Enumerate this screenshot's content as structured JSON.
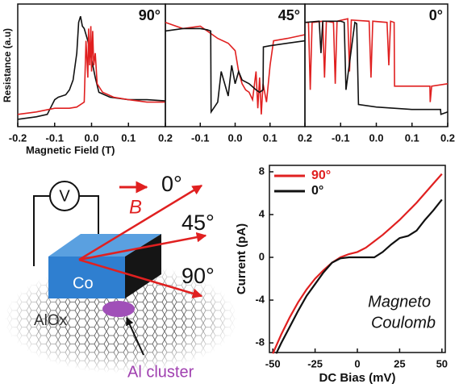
{
  "chart_data": [
    {
      "type": "line",
      "title": "90°",
      "x_label": "Magnetic Field (T)",
      "y_label": "Resistance (a.u)",
      "xlim": [
        -0.2,
        0.2
      ],
      "ylim": [
        0,
        1
      ],
      "xticks": [
        -0.2,
        -0.1,
        {
          "value": 0,
          "label": "0.0"
        },
        0.1,
        0.2
      ],
      "series": [
        {
          "color": "#111111",
          "x": [
            -0.2,
            -0.15,
            -0.12,
            -0.11,
            -0.1,
            -0.09,
            -0.07,
            -0.06,
            -0.05,
            -0.04,
            -0.035,
            -0.03,
            -0.025,
            -0.02,
            -0.01,
            0,
            0.01,
            0.02,
            0.05,
            0.1,
            0.15,
            0.2
          ],
          "values": [
            0.06,
            0.08,
            0.1,
            0.16,
            0.22,
            0.24,
            0.26,
            0.3,
            0.38,
            0.6,
            0.85,
            0.9,
            0.82,
            0.8,
            0.7,
            0.55,
            0.4,
            0.28,
            0.24,
            0.22,
            0.22,
            0.21
          ]
        },
        {
          "color": "#e02020",
          "x": [
            -0.2,
            -0.15,
            -0.1,
            -0.06,
            -0.04,
            -0.02,
            -0.015,
            -0.01,
            -0.008,
            -0.005,
            -0.002,
            0,
            0.003,
            0.006,
            0.01,
            0.015,
            0.03,
            0.06,
            0.1,
            0.15,
            0.2
          ],
          "values": [
            0.1,
            0.12,
            0.15,
            0.15,
            0.16,
            0.2,
            0.7,
            0.4,
            0.8,
            0.5,
            0.82,
            0.45,
            0.78,
            0.5,
            0.6,
            0.35,
            0.28,
            0.24,
            0.22,
            0.2,
            0.2
          ]
        }
      ]
    },
    {
      "type": "line",
      "title": "45°",
      "xlim": [
        -0.2,
        0.2
      ],
      "ylim": [
        0,
        1
      ],
      "xticks": [
        -0.1,
        {
          "value": 0,
          "label": "0.0"
        },
        0.1,
        0.2
      ],
      "series": [
        {
          "color": "#e02020",
          "x": [
            -0.2,
            -0.15,
            -0.1,
            -0.05,
            -0.02,
            0,
            0.01,
            0.02,
            0.03,
            0.04,
            0.05,
            0.06,
            0.065,
            0.07,
            0.075,
            0.08,
            0.09,
            0.1,
            0.11,
            0.15,
            0.2
          ],
          "values": [
            0.85,
            0.8,
            0.82,
            0.72,
            0.68,
            0.62,
            0.45,
            0.35,
            0.3,
            0.28,
            0.22,
            0.45,
            0.15,
            0.4,
            0.1,
            0.35,
            0.2,
            0.5,
            0.7,
            0.72,
            0.75
          ]
        },
        {
          "color": "#111111",
          "x": [
            -0.2,
            -0.15,
            -0.1,
            -0.08,
            -0.07,
            -0.069,
            -0.05,
            -0.04,
            -0.02,
            -0.01,
            0,
            0.01,
            0.02,
            0.04,
            0.06,
            0.07,
            0.08,
            0.081,
            0.1,
            0.15,
            0.2
          ],
          "values": [
            0.78,
            0.8,
            0.8,
            0.79,
            0.78,
            0.12,
            0.2,
            0.45,
            0.25,
            0.5,
            0.35,
            0.45,
            0.38,
            0.35,
            0.3,
            0.28,
            0.3,
            0.65,
            0.66,
            0.68,
            0.7
          ]
        }
      ]
    },
    {
      "type": "line",
      "title": "0°",
      "xlim": [
        -0.2,
        0.2
      ],
      "ylim": [
        0,
        1
      ],
      "xticks": [
        -0.1,
        {
          "value": 0,
          "label": "0.0"
        },
        0.1,
        0.2
      ],
      "series": [
        {
          "color": "#e02020",
          "x": [
            -0.2,
            -0.19,
            -0.185,
            -0.18,
            -0.15,
            -0.145,
            -0.14,
            -0.12,
            -0.115,
            -0.11,
            -0.08,
            -0.075,
            -0.07,
            -0.02,
            -0.015,
            -0.01,
            0.03,
            0.035,
            0.04,
            0.05,
            0.051,
            0.1,
            0.15,
            0.151,
            0.155,
            0.2
          ],
          "values": [
            0.85,
            0.85,
            0.3,
            0.85,
            0.86,
            0.4,
            0.86,
            0.85,
            0.35,
            0.86,
            0.88,
            0.45,
            0.87,
            0.86,
            0.4,
            0.86,
            0.85,
            0.5,
            0.86,
            0.85,
            0.33,
            0.33,
            0.33,
            0.2,
            0.33,
            0.35
          ]
        },
        {
          "color": "#111111",
          "x": [
            -0.2,
            -0.16,
            -0.155,
            -0.15,
            -0.1,
            -0.09,
            -0.085,
            -0.06,
            -0.055,
            -0.05,
            0,
            0.05,
            0.1,
            0.18,
            0.181,
            0.2
          ],
          "values": [
            0.85,
            0.86,
            0.6,
            0.86,
            0.86,
            0.85,
            0.3,
            0.85,
            0.84,
            0.18,
            0.16,
            0.15,
            0.14,
            0.14,
            0.1,
            0.12
          ]
        }
      ]
    },
    {
      "type": "line",
      "x_label": "DC Bias (mV)",
      "y_label": "Current (pA)",
      "annotation": [
        "Magneto",
        "Coulomb"
      ],
      "xlim": [
        -52,
        52
      ],
      "ylim": [
        -8.9,
        8.6
      ],
      "xticks": [
        -50,
        -25,
        0,
        25,
        50
      ],
      "yticks": [
        8,
        4,
        0,
        -4,
        -8
      ],
      "legend": "upper left",
      "series": [
        {
          "name": "90°",
          "color": "#e02020",
          "x": [
            -50,
            -45,
            -40,
            -35,
            -30,
            -25,
            -20,
            -15,
            -10,
            -5,
            0,
            5,
            10,
            15,
            20,
            25,
            30,
            35,
            40,
            45,
            50
          ],
          "values": [
            -9,
            -7.2,
            -5.6,
            -4.2,
            -3,
            -2,
            -1.2,
            -0.5,
            0,
            0.3,
            0.5,
            0.9,
            1.5,
            2.1,
            2.8,
            3.5,
            4.3,
            5.1,
            6,
            6.9,
            7.8
          ]
        },
        {
          "name": "0°",
          "color": "#111111",
          "x": [
            -48,
            -45,
            -40,
            -35,
            -30,
            -25,
            -20,
            -15,
            -10,
            -5,
            0,
            5,
            10,
            15,
            20,
            25,
            30,
            35,
            40,
            45,
            50
          ],
          "values": [
            -9,
            -8,
            -6.5,
            -5,
            -3.6,
            -2.5,
            -1.4,
            -0.5,
            -0.1,
            0,
            0,
            0,
            0,
            0.5,
            1.2,
            1.8,
            2,
            2.5,
            3.5,
            4.4,
            5.4
          ]
        }
      ]
    }
  ],
  "schematic": {
    "voltmeter": "V",
    "field": "B",
    "angles": [
      "0°",
      "45°",
      "90°"
    ],
    "electrode": "Co",
    "substrate": "AlOx",
    "cluster": "Al cluster"
  }
}
